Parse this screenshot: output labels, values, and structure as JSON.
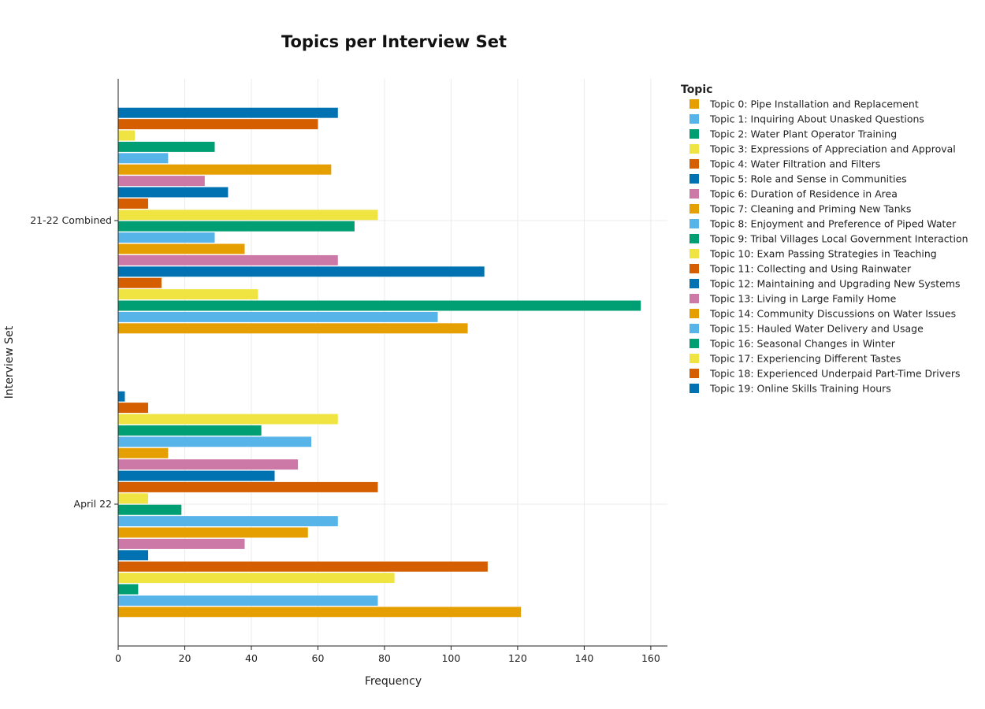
{
  "chart_data": {
    "type": "bar",
    "orientation": "horizontal",
    "barmode": "group",
    "title": "Topics per Interview Set",
    "xlabel": "Frequency",
    "ylabel": "Interview Set",
    "xlim": [
      0,
      165
    ],
    "x_ticks": [
      0,
      20,
      40,
      60,
      80,
      100,
      120,
      140,
      160
    ],
    "categories": [
      "April 22",
      "21-22 Combined"
    ],
    "grid": true,
    "legend": {
      "title": "Topic",
      "placement": "right"
    },
    "series": [
      {
        "name": "Topic 0: Pipe Installation and Replacement",
        "color": "#E69F00",
        "values": [
          121,
          105
        ]
      },
      {
        "name": "Topic 1: Inquiring About Unasked Questions",
        "color": "#56B4E9",
        "values": [
          78,
          96
        ]
      },
      {
        "name": "Topic 2: Water Plant Operator Training",
        "color": "#009E73",
        "values": [
          6,
          157
        ]
      },
      {
        "name": "Topic 3: Expressions of Appreciation and Approval",
        "color": "#F0E442",
        "values": [
          83,
          42
        ]
      },
      {
        "name": "Topic 4: Water Filtration and Filters",
        "color": "#D55E00",
        "values": [
          111,
          13
        ]
      },
      {
        "name": "Topic 5: Role and Sense in Communities",
        "color": "#0072B2",
        "values": [
          9,
          110
        ]
      },
      {
        "name": "Topic 6: Duration of Residence in Area",
        "color": "#CC79A7",
        "values": [
          38,
          66
        ]
      },
      {
        "name": "Topic 7: Cleaning and Priming New Tanks",
        "color": "#E69F00",
        "values": [
          57,
          38
        ]
      },
      {
        "name": "Topic 8: Enjoyment and Preference of Piped Water",
        "color": "#56B4E9",
        "values": [
          66,
          29
        ]
      },
      {
        "name": "Topic 9: Tribal Villages Local Government Interaction",
        "color": "#009E73",
        "values": [
          19,
          71
        ]
      },
      {
        "name": "Topic 10: Exam Passing Strategies in Teaching",
        "color": "#F0E442",
        "values": [
          9,
          78
        ]
      },
      {
        "name": "Topic 11: Collecting and Using Rainwater",
        "color": "#D55E00",
        "values": [
          78,
          9
        ]
      },
      {
        "name": "Topic 12: Maintaining and Upgrading New Systems",
        "color": "#0072B2",
        "values": [
          47,
          33
        ]
      },
      {
        "name": "Topic 13: Living in Large Family Home",
        "color": "#CC79A7",
        "values": [
          54,
          26
        ]
      },
      {
        "name": "Topic 14: Community Discussions on Water Issues",
        "color": "#E69F00",
        "values": [
          15,
          64
        ]
      },
      {
        "name": "Topic 15: Hauled Water Delivery and Usage",
        "color": "#56B4E9",
        "values": [
          58,
          15
        ]
      },
      {
        "name": "Topic 16: Seasonal Changes in Winter",
        "color": "#009E73",
        "values": [
          43,
          29
        ]
      },
      {
        "name": "Topic 17: Experiencing Different Tastes",
        "color": "#F0E442",
        "values": [
          66,
          5
        ]
      },
      {
        "name": "Topic 18: Experienced Underpaid Part-Time Drivers",
        "color": "#D55E00",
        "values": [
          9,
          60
        ]
      },
      {
        "name": "Topic 19: Online Skills Training Hours",
        "color": "#0072B2",
        "values": [
          2,
          66
        ]
      }
    ]
  }
}
